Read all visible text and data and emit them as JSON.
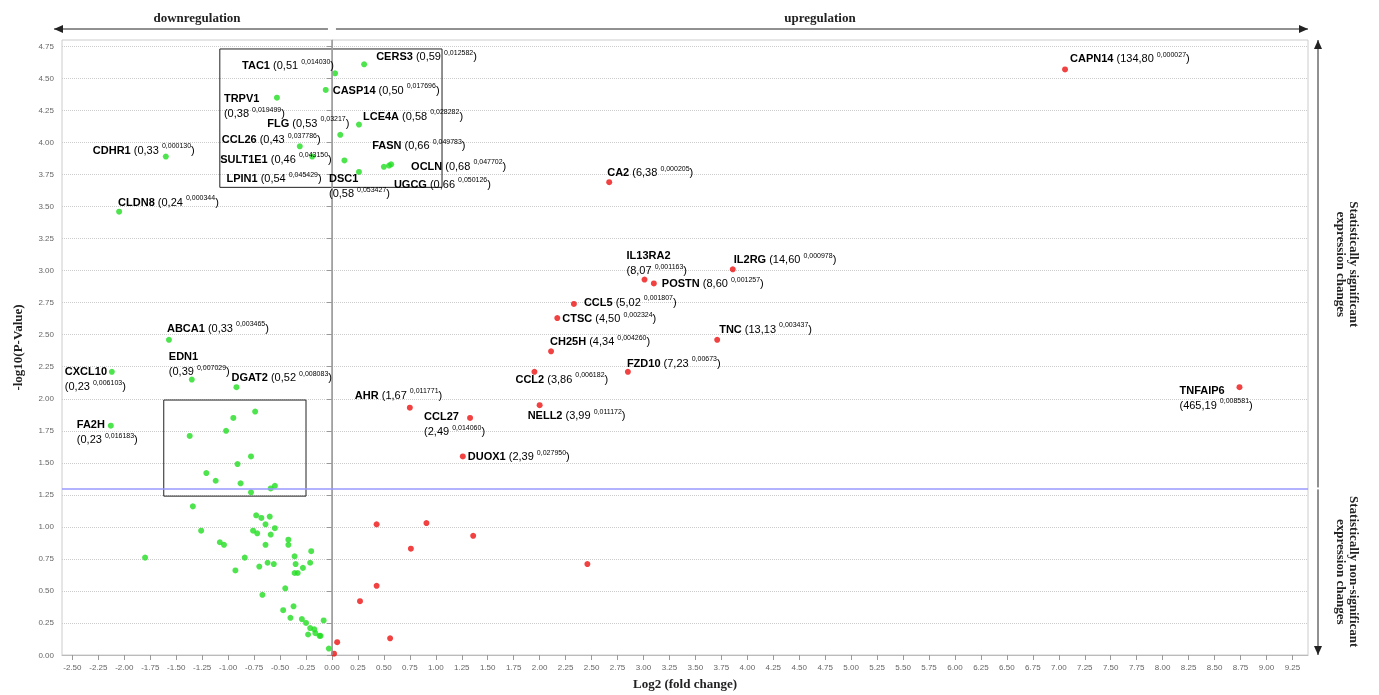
{
  "chart_data": {
    "type": "scatter",
    "xlabel": "Log2 (fold change)",
    "ylabel": "-log10(P-Value)",
    "xlim": [
      -2.6,
      9.4
    ],
    "ylim": [
      0,
      4.8
    ],
    "xticks": [
      {
        "value": -2.5,
        "label": "-2.50"
      },
      {
        "value": -2.25,
        "label": "-2.25"
      },
      {
        "value": -2,
        "label": "-2.00"
      },
      {
        "value": -1.75,
        "label": "-1.75"
      },
      {
        "value": -1.5,
        "label": "-1.50"
      },
      {
        "value": -1.25,
        "label": "-1.25"
      },
      {
        "value": -1,
        "label": "-1.00"
      },
      {
        "value": -0.75,
        "label": "-0.75"
      },
      {
        "value": -0.5,
        "label": "-0.50"
      },
      {
        "value": -0.25,
        "label": "-0.25"
      },
      {
        "value": 0,
        "label": "0.00"
      },
      {
        "value": 0.25,
        "label": "0.25"
      },
      {
        "value": 0.5,
        "label": "0.50"
      },
      {
        "value": 0.75,
        "label": "0.75"
      },
      {
        "value": 1,
        "label": "1.00"
      },
      {
        "value": 1.25,
        "label": "1.25"
      },
      {
        "value": 1.5,
        "label": "1.50"
      },
      {
        "value": 1.75,
        "label": "1.75"
      },
      {
        "value": 2,
        "label": "2.00"
      },
      {
        "value": 2.25,
        "label": "2.25"
      },
      {
        "value": 2.5,
        "label": "2.50"
      },
      {
        "value": 2.75,
        "label": "2.75"
      },
      {
        "value": 3,
        "label": "3.00"
      },
      {
        "value": 3.25,
        "label": "3.25"
      },
      {
        "value": 3.5,
        "label": "3.50"
      },
      {
        "value": 3.75,
        "label": "3.75"
      },
      {
        "value": 4,
        "label": "4.00"
      },
      {
        "value": 4.25,
        "label": "4.25"
      },
      {
        "value": 4.5,
        "label": "4.50"
      },
      {
        "value": 4.75,
        "label": "4.75"
      },
      {
        "value": 5,
        "label": "5.00"
      },
      {
        "value": 5.25,
        "label": "5.25"
      },
      {
        "value": 5.5,
        "label": "5.50"
      },
      {
        "value": 5.75,
        "label": "5.75"
      },
      {
        "value": 6,
        "label": "6.00"
      },
      {
        "value": 6.25,
        "label": "6.25"
      },
      {
        "value": 6.5,
        "label": "6.50"
      },
      {
        "value": 6.75,
        "label": "6.75"
      },
      {
        "value": 7,
        "label": "7.00"
      },
      {
        "value": 7.25,
        "label": "7.25"
      },
      {
        "value": 7.5,
        "label": "7.50"
      },
      {
        "value": 7.75,
        "label": "7.75"
      },
      {
        "value": 8,
        "label": "8.00"
      },
      {
        "value": 8.25,
        "label": "8.25"
      },
      {
        "value": 8.5,
        "label": "8.50"
      },
      {
        "value": 8.75,
        "label": "8.75"
      },
      {
        "value": 9,
        "label": "9.00"
      },
      {
        "value": 9.25,
        "label": "9.25"
      }
    ],
    "yticks": [
      {
        "value": 0,
        "label": "0.00"
      },
      {
        "value": 0.25,
        "label": "0.25"
      },
      {
        "value": 0.5,
        "label": "0.50"
      },
      {
        "value": 0.75,
        "label": "0.75"
      },
      {
        "value": 1,
        "label": "1.00"
      },
      {
        "value": 1.25,
        "label": "1.25"
      },
      {
        "value": 1.5,
        "label": "1.50"
      },
      {
        "value": 1.75,
        "label": "1.75"
      },
      {
        "value": 2,
        "label": "2.00"
      },
      {
        "value": 2.25,
        "label": "2.25"
      },
      {
        "value": 2.5,
        "label": "2.50"
      },
      {
        "value": 2.75,
        "label": "2.75"
      },
      {
        "value": 3,
        "label": "3.00"
      },
      {
        "value": 3.25,
        "label": "3.25"
      },
      {
        "value": 3.5,
        "label": "3.50"
      },
      {
        "value": 3.75,
        "label": "3.75"
      },
      {
        "value": 4,
        "label": "4.00"
      },
      {
        "value": 4.25,
        "label": "4.25"
      },
      {
        "value": 4.5,
        "label": "4.50"
      },
      {
        "value": 4.75,
        "label": "4.75"
      }
    ],
    "grid": "y",
    "marker": "circle",
    "series": [
      {
        "color": "#22dd22",
        "x": [
          0.03,
          0.31,
          -0.06,
          -0.53,
          0.08,
          0.26,
          -0.31,
          -0.19,
          0.12,
          0.26,
          0.57,
          0.55,
          0.5,
          -1.6,
          -2.05,
          -1.57,
          -1.35,
          -2.12,
          -0.92,
          -2.13,
          -0.74,
          -0.95,
          -1.02,
          -1.37,
          -0.78,
          -0.91,
          -1.21,
          -1.12,
          -0.88,
          -0.59,
          -0.55,
          -0.78,
          -1.34,
          -0.73,
          -0.68,
          -0.6,
          -0.64,
          -0.55,
          -1.26,
          -0.76,
          -0.72,
          -0.59,
          -0.42,
          -0.42,
          -0.64,
          -1.08,
          -1.04,
          -0.2,
          -0.36,
          -0.84,
          -1.8,
          -0.21,
          -0.35,
          -0.62,
          -0.56,
          -0.28,
          -0.7,
          -0.93,
          -0.33,
          -0.36,
          -0.45,
          -0.67,
          -0.37,
          -0.47,
          -0.4,
          -0.29,
          -0.25,
          -0.08,
          -0.21,
          -0.17,
          -0.23,
          -0.16,
          -0.12,
          -0.11,
          -0.03
        ],
        "values": [
          4.54,
          4.61,
          4.41,
          4.35,
          4.06,
          4.14,
          3.97,
          3.89,
          3.86,
          3.77,
          3.83,
          3.82,
          3.81,
          3.89,
          3.46,
          2.46,
          2.15,
          2.21,
          2.09,
          1.79,
          1.9,
          1.85,
          1.75,
          1.71,
          1.55,
          1.49,
          1.42,
          1.36,
          1.34,
          1.3,
          1.32,
          1.27,
          1.16,
          1.09,
          1.07,
          1.08,
          1.02,
          0.99,
          0.97,
          0.97,
          0.95,
          0.94,
          0.9,
          0.86,
          0.86,
          0.88,
          0.86,
          0.81,
          0.77,
          0.76,
          0.76,
          0.72,
          0.71,
          0.72,
          0.71,
          0.68,
          0.69,
          0.66,
          0.64,
          0.64,
          0.52,
          0.47,
          0.38,
          0.35,
          0.29,
          0.28,
          0.25,
          0.27,
          0.21,
          0.2,
          0.16,
          0.17,
          0.15,
          0.15,
          0.05
        ]
      },
      {
        "color": "#ee1111",
        "x": [
          0.75,
          1.33,
          1.26,
          2.0,
          1.95,
          2.85,
          2.11,
          3.71,
          2.17,
          2.33,
          3.1,
          3.01,
          3.86,
          2.67,
          7.06,
          8.74,
          0.02,
          0.05,
          0.43,
          0.91,
          1.36,
          0.76,
          2.46,
          0.43,
          0.27,
          0.56
        ],
        "values": [
          1.93,
          1.85,
          1.55,
          1.95,
          2.21,
          2.21,
          2.37,
          2.46,
          2.63,
          2.74,
          2.9,
          2.93,
          3.01,
          3.69,
          4.57,
          2.09,
          0.01,
          0.1,
          1.02,
          1.03,
          0.93,
          0.83,
          0.71,
          0.54,
          0.42,
          0.13
        ]
      }
    ],
    "ref_lines": [
      {
        "axis": "x",
        "value": 0,
        "color": "#999999"
      },
      {
        "axis": "y",
        "value": 1.3,
        "color": "#9999ff"
      }
    ],
    "annotations": [
      "downregulation",
      "upregulation",
      "Statistically significant\nexpression changes",
      "Statistically non-significant\nexpression changes",
      {
        "text": "TAC1 (0,51 $^{0,014030}$)",
        "x": 0.03,
        "y": 4.54
      },
      {
        "text": "CERS3 (0,59 $^{0,012582}$)",
        "x": 0.31,
        "y": 4.61
      },
      {
        "text": "CASP14 (0,50 $^{0,017696}$)",
        "x": -0.06,
        "y": 4.41
      },
      {
        "text": "TRPV1\n(0,38 $^{0,019499}$)",
        "x": -0.53,
        "y": 4.35
      },
      {
        "text": "FLG (0,53 $^{0,03217}$)",
        "x": 0.08,
        "y": 4.06
      },
      {
        "text": "LCE4A (0,58 $^{0,028282}$)",
        "x": 0.26,
        "y": 4.14
      },
      {
        "text": "CCL26 (0,43 $^{0,037786}$)",
        "x": -0.31,
        "y": 3.97
      },
      {
        "text": "SULT1E1 (0,46 $^{0,043150}$)",
        "x": -0.19,
        "y": 3.89
      },
      {
        "text": "LPIN1 (0,54 $^{0,045429}$)",
        "x": 0.12,
        "y": 3.86
      },
      {
        "text": "DSC1\n(0,58 $^{0,053427}$)",
        "x": 0.26,
        "y": 3.77
      },
      {
        "text": "FASN (0,66 $^{0,049783}$)",
        "x": 0.57,
        "y": 3.83
      },
      {
        "text": "OCLN (0,68 $^{0,047702}$)",
        "x": 0.55,
        "y": 3.82
      },
      {
        "text": "UGCG (0,66 $^{0,050126}$)",
        "x": 0.5,
        "y": 3.81
      },
      {
        "text": "CDHR1 (0,33 $^{0,000130}$)",
        "x": -1.6,
        "y": 3.89
      },
      {
        "text": "CLDN8 (0,24 $^{0,000344}$)",
        "x": -2.05,
        "y": 3.46
      },
      {
        "text": "ABCA1 (0,33 $^{0,003465}$)",
        "x": -1.57,
        "y": 2.46
      },
      {
        "text": "EDN1\n(0,39 $^{0,007029}$)",
        "x": -1.35,
        "y": 2.15
      },
      {
        "text": "CXCL10\n(0,23 $^{0,006103}$)",
        "x": -2.12,
        "y": 2.21
      },
      {
        "text": "DGAT2 (0,52 $^{0,008083}$)",
        "x": -0.92,
        "y": 2.09
      },
      {
        "text": "FA2H\n(0,23 $^{0,016183}$)",
        "x": -2.13,
        "y": 1.79
      },
      {
        "text": "AHR (1,67 $^{0,011771}$)",
        "x": 0.75,
        "y": 1.93
      },
      {
        "text": "CCL27\n(2,49 $^{0,014060}$)",
        "x": 1.33,
        "y": 1.85
      },
      {
        "text": "DUOX1 (2,39 $^{0,027950}$)",
        "x": 1.26,
        "y": 1.55
      },
      {
        "text": "NELL2 (3,99 $^{0,011172}$)",
        "x": 2.0,
        "y": 1.95
      },
      {
        "text": "CCL2 (3,86 $^{0,006182}$)",
        "x": 1.95,
        "y": 2.21
      },
      {
        "text": "FZD10 (7,23 $^{0,00673}$)",
        "x": 2.85,
        "y": 2.21
      },
      {
        "text": "CH25H (4,34 $^{0,004260}$)",
        "x": 2.11,
        "y": 2.37
      },
      {
        "text": "TNC (13,13 $^{0,003437}$)",
        "x": 3.71,
        "y": 2.46
      },
      {
        "text": "CTSC (4,50 $^{0,002324}$)",
        "x": 2.17,
        "y": 2.63
      },
      {
        "text": "CCL5 (5,02 $^{0,001807}$)",
        "x": 2.33,
        "y": 2.74
      },
      {
        "text": "POSTN (8,60 $^{0,001257}$)",
        "x": 3.1,
        "y": 2.9
      },
      {
        "text": "IL13RA2\n(8,07 $^{0,001163}$)",
        "x": 3.01,
        "y": 2.93
      },
      {
        "text": "IL2RG (14,60 $^{0,000978}$)",
        "x": 3.86,
        "y": 3.01
      },
      {
        "text": "CA2 (6,38 $^{0,000205}$)",
        "x": 2.67,
        "y": 3.69
      },
      {
        "text": "CAPN14 (134,80 $^{0,000027}$)",
        "x": 7.06,
        "y": 4.57
      },
      {
        "text": "TNFAIP6\n(465,19 $^{0,008581}$)",
        "x": 8.74,
        "y": 2.09
      }
    ]
  }
}
